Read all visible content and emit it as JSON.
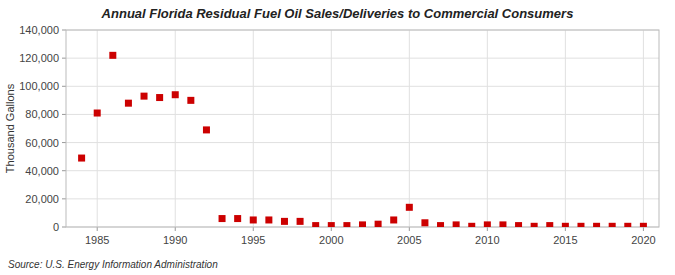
{
  "chart_data": {
    "type": "scatter",
    "title": "Annual Florida Residual Fuel Oil Sales/Deliveries to Commercial Consumers",
    "y_label": "Thousand Gallons",
    "annotations": [
      "Source: U.S. Energy Information Administration"
    ],
    "color": "#CC0000",
    "marker": "square",
    "grid": true,
    "xlim": [
      1983,
      2021
    ],
    "ylim": [
      0,
      140000
    ],
    "xticks": [
      1985,
      1990,
      1995,
      2000,
      2005,
      2010,
      2015,
      2020
    ],
    "yticks": [
      0,
      {
        "value": 20000,
        "label": "20,000"
      },
      {
        "value": 40000,
        "label": "40,000"
      },
      {
        "value": 60000,
        "label": "60,000"
      },
      {
        "value": 80000,
        "label": "80,000"
      },
      {
        "value": 100000,
        "label": "100,000"
      },
      {
        "value": 120000,
        "label": "120,000"
      },
      {
        "value": 140000,
        "label": "140,000"
      }
    ],
    "x": [
      1984,
      1985,
      1986,
      1987,
      1988,
      1989,
      1990,
      1991,
      1992,
      1993,
      1994,
      1995,
      1996,
      1997,
      1998,
      1999,
      2000,
      2001,
      2002,
      2003,
      2004,
      2005,
      2006,
      2007,
      2008,
      2009,
      2010,
      2011,
      2012,
      2013,
      2014,
      2015,
      2016,
      2017,
      2018,
      2019,
      2020
    ],
    "values": [
      49000,
      81000,
      122000,
      88000,
      93000,
      92000,
      94000,
      90000,
      69000,
      6000,
      6000,
      5000,
      5000,
      4000,
      4000,
      1000,
      1000,
      1000,
      1500,
      2000,
      5000,
      14000,
      3000,
      1000,
      1500,
      500,
      1500,
      1500,
      1000,
      500,
      1000,
      500,
      500,
      500,
      500,
      500,
      500
    ]
  }
}
